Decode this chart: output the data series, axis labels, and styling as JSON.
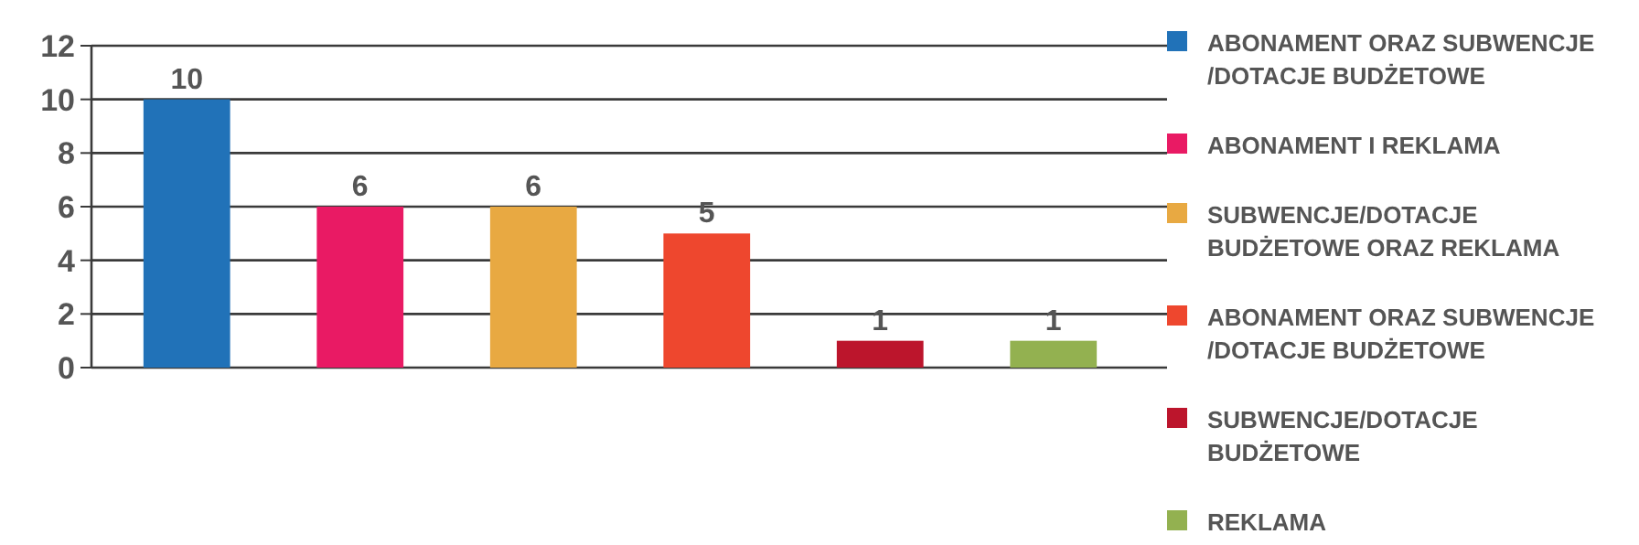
{
  "chart_data": {
    "type": "bar",
    "categories": [
      null,
      null,
      null,
      null,
      null,
      null
    ],
    "series": [
      {
        "name": "ABONAMENT ORAZ SUBWENCJE/DOTACJE BUDŻETOWE",
        "color": "#2172b8",
        "values": [
          10,
          null,
          null,
          null,
          null,
          null
        ]
      },
      {
        "name": "ABONAMENT I REKLAMA",
        "color": "#e91a64",
        "values": [
          null,
          6,
          null,
          null,
          null,
          null
        ]
      },
      {
        "name": "SUBWENCJE/DOTACJE BUDŻETOWE ORAZ REKLAMA",
        "color": "#e8a942",
        "values": [
          null,
          null,
          6,
          null,
          null,
          null
        ]
      },
      {
        "name": "ABONAMENT ORAZ SUBWENCJE/DOTACJE BUDŻETOWE",
        "color": "#ee472e",
        "values": [
          null,
          null,
          null,
          5,
          null,
          null
        ]
      },
      {
        "name": "SUBWENCJE/DOTACJE BUDŻETOWE",
        "color": "#bc152c",
        "values": [
          null,
          null,
          null,
          null,
          1,
          null
        ]
      },
      {
        "name": "REKLAMA",
        "color": "#93b150",
        "values": [
          null,
          null,
          null,
          null,
          null,
          1
        ]
      }
    ],
    "ylim": [
      0,
      12
    ],
    "yticks": [
      0,
      2,
      4,
      6,
      8,
      10,
      12
    ],
    "grid": "y",
    "legend": "right",
    "data_labels": true
  }
}
